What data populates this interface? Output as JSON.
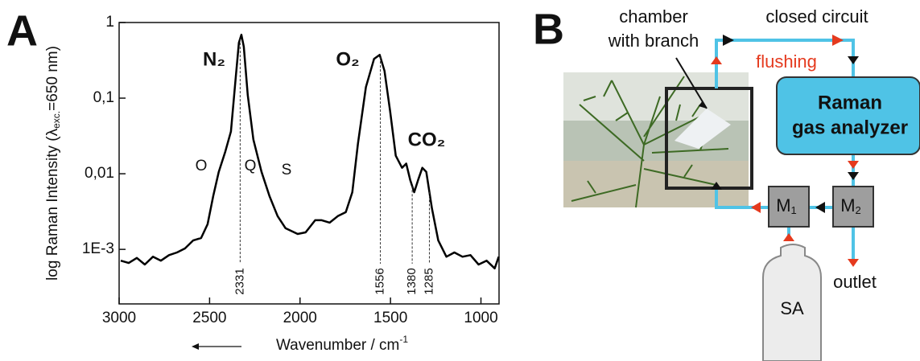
{
  "panel_labels": [
    "A",
    "B"
  ],
  "chart_data": {
    "type": "line",
    "x_label": [
      "Wavenumber / cm",
      "-1"
    ],
    "y_label": [
      "log Raman Intensity (λ",
      "exc.",
      "=650 nm)"
    ],
    "xlim": [
      3000,
      900
    ],
    "xticks": [
      3000,
      2500,
      2000,
      1500,
      1000
    ],
    "ylim": [
      0.00019,
      1
    ],
    "log_y": true,
    "yticks": [
      1,
      {
        "value": 0.1,
        "label": "0,1"
      },
      {
        "value": 0.01,
        "label": "0,01"
      },
      {
        "value": 0.001,
        "label": "1E-3"
      }
    ],
    "series": [
      {
        "color": "#000000",
        "x": [
          2991,
          2947,
          2902,
          2858,
          2813,
          2769,
          2724,
          2680,
          2636,
          2591,
          2547,
          2511,
          2480,
          2449,
          2413,
          2382,
          2356,
          2338,
          2324,
          2311,
          2289,
          2258,
          2213,
          2169,
          2124,
          2080,
          2013,
          1969,
          1916,
          1880,
          1836,
          1791,
          1747,
          1711,
          1680,
          1636,
          1591,
          1560,
          1533,
          1502,
          1471,
          1436,
          1413,
          1391,
          1369,
          1347,
          1324,
          1302,
          1271,
          1236,
          1191,
          1147,
          1102,
          1058,
          1013,
          969,
          924,
          902
        ],
        "values": [
          0.00071,
          0.00066,
          0.00077,
          0.00063,
          0.0008,
          0.00071,
          0.00084,
          0.00091,
          0.00103,
          0.00131,
          0.00141,
          0.00215,
          0.00507,
          0.0106,
          0.0196,
          0.0362,
          0.179,
          0.541,
          0.69,
          0.479,
          0.11,
          0.0283,
          0.0106,
          0.00507,
          0.00275,
          0.0019,
          0.0016,
          0.00168,
          0.00243,
          0.00243,
          0.00226,
          0.00275,
          0.0031,
          0.0057,
          0.025,
          0.14,
          0.33,
          0.374,
          0.229,
          0.067,
          0.0173,
          0.012,
          0.0136,
          0.0083,
          0.0057,
          0.0083,
          0.012,
          0.0106,
          0.0035,
          0.00131,
          0.0008,
          0.00091,
          0.0008,
          0.00084,
          0.00063,
          0.00071,
          0.00056,
          0.0008
        ]
      }
    ],
    "peaks": [
      2331,
      1556,
      1380,
      1285
    ],
    "annotations": [
      "N₂",
      "O₂",
      "CO₂",
      "O",
      "Q",
      "S"
    ]
  },
  "diagram": {
    "chamber": [
      "chamber",
      "with branch"
    ],
    "circuit": "closed circuit",
    "flushing": "flushing",
    "analyzer": [
      "Raman",
      "gas analyzer"
    ],
    "m1": [
      "M",
      "1"
    ],
    "m2": [
      "M",
      "2"
    ],
    "outlet": "outlet",
    "source": "SA"
  }
}
